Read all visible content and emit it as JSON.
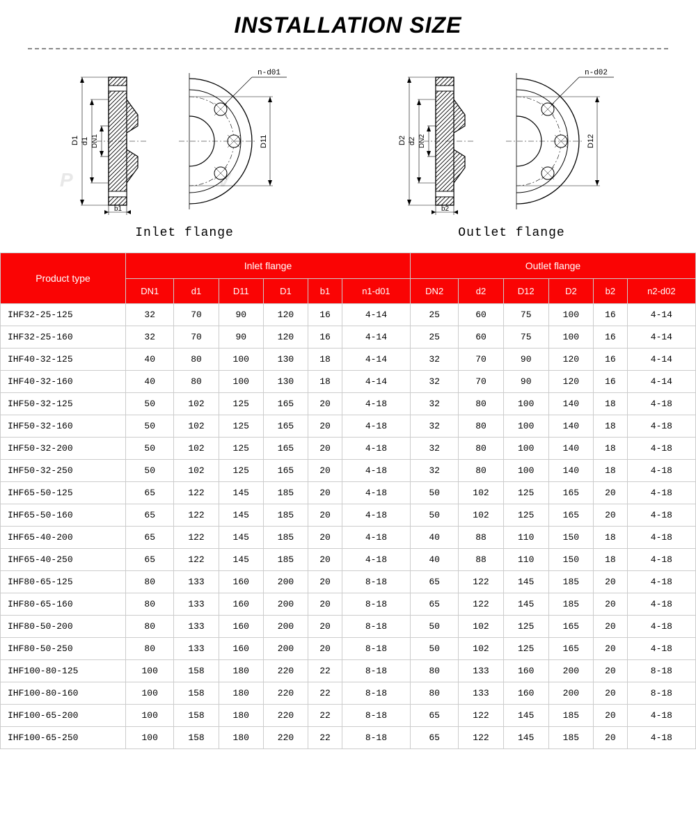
{
  "title": "INSTALLATION SIZE",
  "diagrams": {
    "inlet": {
      "label": "Inlet flange",
      "dim_labels": {
        "D": "D1",
        "d": "d1",
        "DN": "DN1",
        "b": "b1",
        "D1x": "D11",
        "nd": "n-d01"
      }
    },
    "outlet": {
      "label": "Outlet flange",
      "dim_labels": {
        "D": "D2",
        "d": "d2",
        "DN": "DN2",
        "b": "b2",
        "D1x": "D12",
        "nd": "n-d02"
      }
    }
  },
  "table": {
    "header": {
      "product": "Product type",
      "inlet": "Inlet flange",
      "outlet": "Outlet flange",
      "inlet_cols": [
        "DN1",
        "d1",
        "D11",
        "D1",
        "b1",
        "n1-d01"
      ],
      "outlet_cols": [
        "DN2",
        "d2",
        "D12",
        "D2",
        "b2",
        "n2-d02"
      ]
    },
    "rows": [
      [
        "IHF32-25-125",
        "32",
        "70",
        "90",
        "120",
        "16",
        "4-14",
        "25",
        "60",
        "75",
        "100",
        "16",
        "4-14"
      ],
      [
        "IHF32-25-160",
        "32",
        "70",
        "90",
        "120",
        "16",
        "4-14",
        "25",
        "60",
        "75",
        "100",
        "16",
        "4-14"
      ],
      [
        "IHF40-32-125",
        "40",
        "80",
        "100",
        "130",
        "18",
        "4-14",
        "32",
        "70",
        "90",
        "120",
        "16",
        "4-14"
      ],
      [
        "IHF40-32-160",
        "40",
        "80",
        "100",
        "130",
        "18",
        "4-14",
        "32",
        "70",
        "90",
        "120",
        "16",
        "4-14"
      ],
      [
        "IHF50-32-125",
        "50",
        "102",
        "125",
        "165",
        "20",
        "4-18",
        "32",
        "80",
        "100",
        "140",
        "18",
        "4-18"
      ],
      [
        "IHF50-32-160",
        "50",
        "102",
        "125",
        "165",
        "20",
        "4-18",
        "32",
        "80",
        "100",
        "140",
        "18",
        "4-18"
      ],
      [
        "IHF50-32-200",
        "50",
        "102",
        "125",
        "165",
        "20",
        "4-18",
        "32",
        "80",
        "100",
        "140",
        "18",
        "4-18"
      ],
      [
        "IHF50-32-250",
        "50",
        "102",
        "125",
        "165",
        "20",
        "4-18",
        "32",
        "80",
        "100",
        "140",
        "18",
        "4-18"
      ],
      [
        "IHF65-50-125",
        "65",
        "122",
        "145",
        "185",
        "20",
        "4-18",
        "50",
        "102",
        "125",
        "165",
        "20",
        "4-18"
      ],
      [
        "IHF65-50-160",
        "65",
        "122",
        "145",
        "185",
        "20",
        "4-18",
        "50",
        "102",
        "125",
        "165",
        "20",
        "4-18"
      ],
      [
        "IHF65-40-200",
        "65",
        "122",
        "145",
        "185",
        "20",
        "4-18",
        "40",
        "88",
        "110",
        "150",
        "18",
        "4-18"
      ],
      [
        "IHF65-40-250",
        "65",
        "122",
        "145",
        "185",
        "20",
        "4-18",
        "40",
        "88",
        "110",
        "150",
        "18",
        "4-18"
      ],
      [
        "IHF80-65-125",
        "80",
        "133",
        "160",
        "200",
        "20",
        "8-18",
        "65",
        "122",
        "145",
        "185",
        "20",
        "4-18"
      ],
      [
        "IHF80-65-160",
        "80",
        "133",
        "160",
        "200",
        "20",
        "8-18",
        "65",
        "122",
        "145",
        "185",
        "20",
        "4-18"
      ],
      [
        "IHF80-50-200",
        "80",
        "133",
        "160",
        "200",
        "20",
        "8-18",
        "50",
        "102",
        "125",
        "165",
        "20",
        "4-18"
      ],
      [
        "IHF80-50-250",
        "80",
        "133",
        "160",
        "200",
        "20",
        "8-18",
        "50",
        "102",
        "125",
        "165",
        "20",
        "4-18"
      ],
      [
        "IHF100-80-125",
        "100",
        "158",
        "180",
        "220",
        "22",
        "8-18",
        "80",
        "133",
        "160",
        "200",
        "20",
        "8-18"
      ],
      [
        "IHF100-80-160",
        "100",
        "158",
        "180",
        "220",
        "22",
        "8-18",
        "80",
        "133",
        "160",
        "200",
        "20",
        "8-18"
      ],
      [
        "IHF100-65-200",
        "100",
        "158",
        "180",
        "220",
        "22",
        "8-18",
        "65",
        "122",
        "145",
        "185",
        "20",
        "4-18"
      ],
      [
        "IHF100-65-250",
        "100",
        "158",
        "180",
        "220",
        "22",
        "8-18",
        "65",
        "122",
        "145",
        "185",
        "20",
        "4-18"
      ]
    ]
  },
  "styling": {
    "header_bg": "#fa0404",
    "header_fg": "#ffffff",
    "border_color": "#cccccc",
    "title_fontsize": 32,
    "table_fontsize": 13,
    "diagram_stroke": "#000000",
    "hatch_color": "#000000"
  }
}
